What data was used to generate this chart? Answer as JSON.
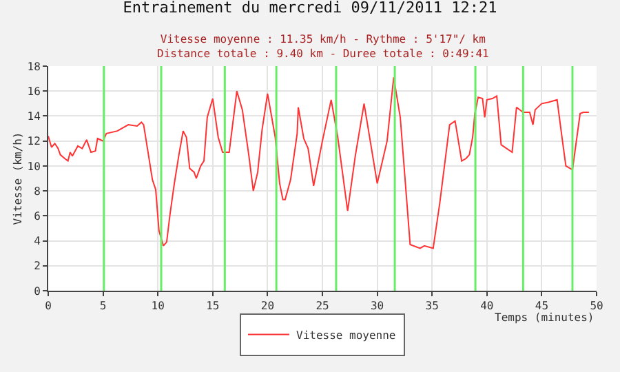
{
  "chart_data": {
    "type": "line",
    "title": "Entrainement du mercredi 09/11/2011 12:21",
    "subtitle": "Vitesse moyenne : 11.35 km/h - Rythme : 5'17\"/ km\nDistance totale : 9.40 km - Duree totale : 0:49:41",
    "xlabel": "Temps (minutes)",
    "ylabel": "Vitesse (km/h)",
    "series": [
      {
        "name": "Vitesse moyenne",
        "color": "#ff3333",
        "x": [
          0,
          0.3,
          0.6,
          0.9,
          1.1,
          1.5,
          1.8,
          2.0,
          2.2,
          2.7,
          3.1,
          3.5,
          3.9,
          4.3,
          4.5,
          5.0,
          5.3,
          6.3,
          7.3,
          8.1,
          8.5,
          8.7,
          9.1,
          9.5,
          9.8,
          10.1,
          10.5,
          10.8,
          11.1,
          11.5,
          11.9,
          12.3,
          12.6,
          12.9,
          13.3,
          13.5,
          13.9,
          14.2,
          14.5,
          15.0,
          15.5,
          15.9,
          16.5,
          17.2,
          17.7,
          18.3,
          18.7,
          19.1,
          19.5,
          20.0,
          20.7,
          21.1,
          21.4,
          21.6,
          22.1,
          22.7,
          22.8,
          23.3,
          23.7,
          24.2,
          25.0,
          25.8,
          26.4,
          27.3,
          28.0,
          28.8,
          30.0,
          30.9,
          31.5,
          32.1,
          33.0,
          33.9,
          34.3,
          35.1,
          35.7,
          36.6,
          37.1,
          37.7,
          38.1,
          38.4,
          38.7,
          38.9,
          39.2,
          39.6,
          39.8,
          40.0,
          40.5,
          40.9,
          41.3,
          42.3,
          42.7,
          43.3,
          43.9,
          44.2,
          44.4,
          45.0,
          45.6,
          46.4,
          46.8,
          47.2,
          47.8,
          48.5,
          48.8,
          49.3
        ],
        "values": [
          12.4,
          11.5,
          11.8,
          11.4,
          10.9,
          10.6,
          10.4,
          11.1,
          10.8,
          11.6,
          11.4,
          12.1,
          11.1,
          11.2,
          12.2,
          12.0,
          12.6,
          12.8,
          13.3,
          13.2,
          13.5,
          13.3,
          11.1,
          8.9,
          8.1,
          4.8,
          3.6,
          3.9,
          6.1,
          8.6,
          10.8,
          12.8,
          12.3,
          9.8,
          9.5,
          9.0,
          10.0,
          10.4,
          13.9,
          15.4,
          12.3,
          11.1,
          11.1,
          16.0,
          14.5,
          10.8,
          8.0,
          9.5,
          12.9,
          15.8,
          12.3,
          8.6,
          7.3,
          7.3,
          8.9,
          12.6,
          14.7,
          12.2,
          11.4,
          8.4,
          12.0,
          15.3,
          12.3,
          6.4,
          10.8,
          15.0,
          8.6,
          12.0,
          17.1,
          13.9,
          3.7,
          3.4,
          3.6,
          3.4,
          7.0,
          13.3,
          13.6,
          10.4,
          10.6,
          10.9,
          12.3,
          14.2,
          15.5,
          15.4,
          13.9,
          15.3,
          15.4,
          15.6,
          11.7,
          11.1,
          14.7,
          14.3,
          14.3,
          13.3,
          14.5,
          15.0,
          15.1,
          15.3,
          12.6,
          10.0,
          9.7,
          14.2,
          14.3,
          14.3
        ]
      }
    ],
    "ref_lines": [
      {
        "axis": "x",
        "value": 5.08,
        "color": "#66ee66"
      },
      {
        "axis": "x",
        "value": 10.3,
        "color": "#66ee66"
      },
      {
        "axis": "x",
        "value": 16.1,
        "color": "#66ee66"
      },
      {
        "axis": "x",
        "value": 20.8,
        "color": "#66ee66"
      },
      {
        "axis": "x",
        "value": 26.25,
        "color": "#66ee66"
      },
      {
        "axis": "x",
        "value": 31.6,
        "color": "#66ee66"
      },
      {
        "axis": "x",
        "value": 38.95,
        "color": "#66ee66"
      },
      {
        "axis": "x",
        "value": 43.3,
        "color": "#66ee66"
      },
      {
        "axis": "x",
        "value": 47.8,
        "color": "#66ee66"
      }
    ],
    "xlim": [
      0,
      50
    ],
    "xticks": [
      0,
      5,
      10,
      15,
      20,
      25,
      30,
      35,
      40,
      45,
      50
    ],
    "ylim": [
      0,
      18
    ],
    "yticks": [
      0,
      2,
      4,
      6,
      8,
      10,
      12,
      14,
      16,
      18
    ],
    "grid": true,
    "legend": "bottom",
    "marker": "none",
    "line_style": "solid"
  }
}
